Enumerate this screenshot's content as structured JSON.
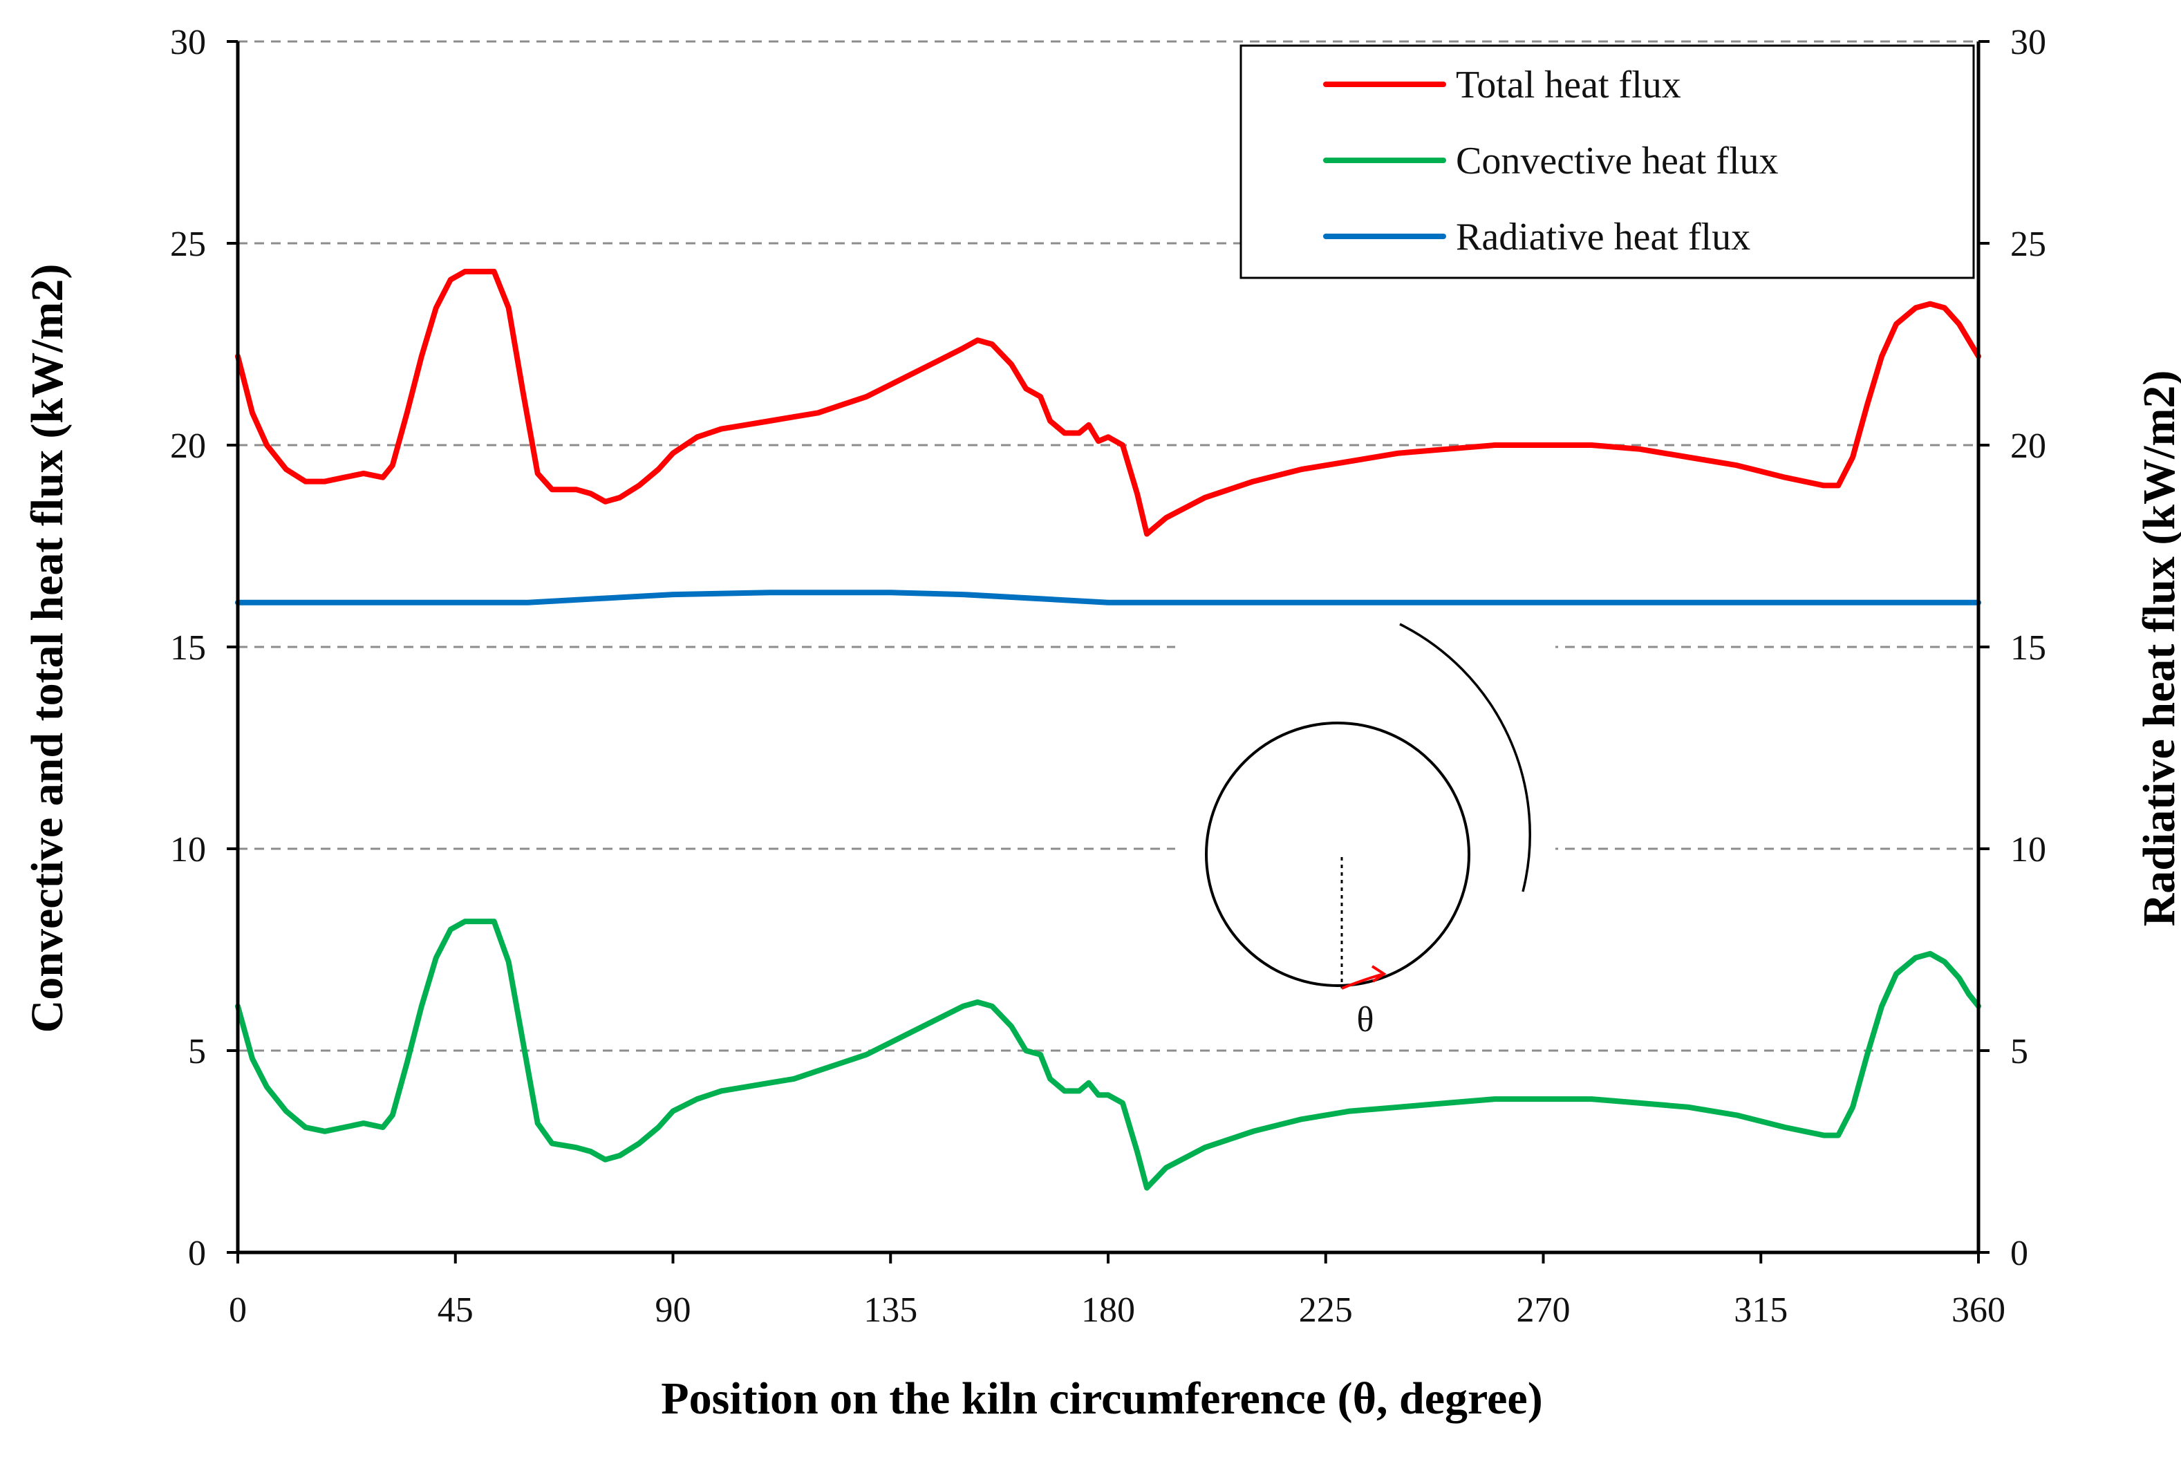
{
  "chart_data": {
    "type": "line",
    "title": "",
    "xlabel": "Position on the kiln circumference (θ, degree)",
    "ylabel_left": "Convective and total heat flux (kW/m2)",
    "ylabel_right": "Radiative heat flux (kW/m2)",
    "xlim": [
      0,
      360
    ],
    "ylim": [
      0,
      30
    ],
    "ylim_right": [
      0,
      30
    ],
    "x_ticks": [
      "0",
      "45",
      "90",
      "135",
      "180",
      "225",
      "270",
      "315",
      "360"
    ],
    "y_ticks": [
      "0",
      "5",
      "10",
      "15",
      "20",
      "25",
      "30"
    ],
    "y_ticks_right": [
      "0",
      "5",
      "10",
      "15",
      "20",
      "25",
      "30"
    ],
    "grid": "horizontal dashed",
    "legend_position": "top-right",
    "series": [
      {
        "name": "Total heat flux",
        "color": "#ff0000",
        "axis": "left",
        "points": [
          [
            0,
            22.2
          ],
          [
            3,
            20.8
          ],
          [
            6,
            20.0
          ],
          [
            10,
            19.4
          ],
          [
            14,
            19.1
          ],
          [
            18,
            19.1
          ],
          [
            22,
            19.2
          ],
          [
            26,
            19.3
          ],
          [
            30,
            19.2
          ],
          [
            32,
            19.5
          ],
          [
            35,
            20.8
          ],
          [
            38,
            22.2
          ],
          [
            41,
            23.4
          ],
          [
            44,
            24.1
          ],
          [
            47,
            24.3
          ],
          [
            50,
            24.3
          ],
          [
            53,
            24.3
          ],
          [
            56,
            23.4
          ],
          [
            59,
            21.3
          ],
          [
            62,
            19.3
          ],
          [
            65,
            18.9
          ],
          [
            70,
            18.9
          ],
          [
            73,
            18.8
          ],
          [
            76,
            18.6
          ],
          [
            79,
            18.7
          ],
          [
            83,
            19.0
          ],
          [
            87,
            19.4
          ],
          [
            90,
            19.8
          ],
          [
            95,
            20.2
          ],
          [
            100,
            20.4
          ],
          [
            105,
            20.5
          ],
          [
            110,
            20.6
          ],
          [
            115,
            20.7
          ],
          [
            120,
            20.8
          ],
          [
            125,
            21.0
          ],
          [
            130,
            21.2
          ],
          [
            135,
            21.5
          ],
          [
            140,
            21.8
          ],
          [
            145,
            22.1
          ],
          [
            150,
            22.4
          ],
          [
            153,
            22.6
          ],
          [
            156,
            22.5
          ],
          [
            160,
            22.0
          ],
          [
            163,
            21.4
          ],
          [
            166,
            21.2
          ],
          [
            168,
            20.6
          ],
          [
            171,
            20.3
          ],
          [
            174,
            20.3
          ],
          [
            176,
            20.5
          ],
          [
            178,
            20.1
          ],
          [
            180,
            20.2
          ],
          [
            183,
            20.0
          ],
          [
            186,
            18.8
          ],
          [
            188,
            17.8
          ],
          [
            192,
            18.2
          ],
          [
            200,
            18.7
          ],
          [
            210,
            19.1
          ],
          [
            220,
            19.4
          ],
          [
            230,
            19.6
          ],
          [
            240,
            19.8
          ],
          [
            250,
            19.9
          ],
          [
            260,
            20.0
          ],
          [
            270,
            20.0
          ],
          [
            280,
            20.0
          ],
          [
            290,
            19.9
          ],
          [
            300,
            19.7
          ],
          [
            310,
            19.5
          ],
          [
            320,
            19.2
          ],
          [
            328,
            19.0
          ],
          [
            331,
            19.0
          ],
          [
            334,
            19.7
          ],
          [
            337,
            21.0
          ],
          [
            340,
            22.2
          ],
          [
            343,
            23.0
          ],
          [
            347,
            23.4
          ],
          [
            350,
            23.5
          ],
          [
            353,
            23.4
          ],
          [
            356,
            23.0
          ],
          [
            358,
            22.6
          ],
          [
            360,
            22.2
          ]
        ]
      },
      {
        "name": "Convective heat flux",
        "color": "#00b050",
        "axis": "left",
        "points": [
          [
            0,
            6.1
          ],
          [
            3,
            4.8
          ],
          [
            6,
            4.1
          ],
          [
            10,
            3.5
          ],
          [
            14,
            3.1
          ],
          [
            18,
            3.0
          ],
          [
            22,
            3.1
          ],
          [
            26,
            3.2
          ],
          [
            30,
            3.1
          ],
          [
            32,
            3.4
          ],
          [
            35,
            4.7
          ],
          [
            38,
            6.1
          ],
          [
            41,
            7.3
          ],
          [
            44,
            8.0
          ],
          [
            47,
            8.2
          ],
          [
            50,
            8.2
          ],
          [
            53,
            8.2
          ],
          [
            56,
            7.2
          ],
          [
            59,
            5.2
          ],
          [
            62,
            3.2
          ],
          [
            65,
            2.7
          ],
          [
            70,
            2.6
          ],
          [
            73,
            2.5
          ],
          [
            76,
            2.3
          ],
          [
            79,
            2.4
          ],
          [
            83,
            2.7
          ],
          [
            87,
            3.1
          ],
          [
            90,
            3.5
          ],
          [
            95,
            3.8
          ],
          [
            100,
            4.0
          ],
          [
            105,
            4.1
          ],
          [
            110,
            4.2
          ],
          [
            115,
            4.3
          ],
          [
            120,
            4.5
          ],
          [
            125,
            4.7
          ],
          [
            130,
            4.9
          ],
          [
            135,
            5.2
          ],
          [
            140,
            5.5
          ],
          [
            145,
            5.8
          ],
          [
            150,
            6.1
          ],
          [
            153,
            6.2
          ],
          [
            156,
            6.1
          ],
          [
            160,
            5.6
          ],
          [
            163,
            5.0
          ],
          [
            166,
            4.9
          ],
          [
            168,
            4.3
          ],
          [
            171,
            4.0
          ],
          [
            174,
            4.0
          ],
          [
            176,
            4.2
          ],
          [
            178,
            3.9
          ],
          [
            180,
            3.9
          ],
          [
            183,
            3.7
          ],
          [
            186,
            2.5
          ],
          [
            188,
            1.6
          ],
          [
            192,
            2.1
          ],
          [
            200,
            2.6
          ],
          [
            210,
            3.0
          ],
          [
            220,
            3.3
          ],
          [
            230,
            3.5
          ],
          [
            240,
            3.6
          ],
          [
            250,
            3.7
          ],
          [
            260,
            3.8
          ],
          [
            270,
            3.8
          ],
          [
            280,
            3.8
          ],
          [
            290,
            3.7
          ],
          [
            300,
            3.6
          ],
          [
            310,
            3.4
          ],
          [
            320,
            3.1
          ],
          [
            328,
            2.9
          ],
          [
            331,
            2.9
          ],
          [
            334,
            3.6
          ],
          [
            337,
            4.9
          ],
          [
            340,
            6.1
          ],
          [
            343,
            6.9
          ],
          [
            347,
            7.3
          ],
          [
            350,
            7.4
          ],
          [
            353,
            7.2
          ],
          [
            356,
            6.8
          ],
          [
            358,
            6.4
          ],
          [
            360,
            6.1
          ]
        ]
      },
      {
        "name": "Radiative heat flux",
        "color": "#0070c0",
        "axis": "right",
        "points": [
          [
            0,
            16.1
          ],
          [
            60,
            16.1
          ],
          [
            75,
            16.2
          ],
          [
            90,
            16.3
          ],
          [
            110,
            16.35
          ],
          [
            135,
            16.35
          ],
          [
            150,
            16.3
          ],
          [
            165,
            16.2
          ],
          [
            180,
            16.1
          ],
          [
            200,
            16.1
          ],
          [
            250,
            16.1
          ],
          [
            300,
            16.1
          ],
          [
            360,
            16.1
          ]
        ]
      }
    ],
    "inset": {
      "label": "θ",
      "description_words": "circle with arrow"
    }
  }
}
